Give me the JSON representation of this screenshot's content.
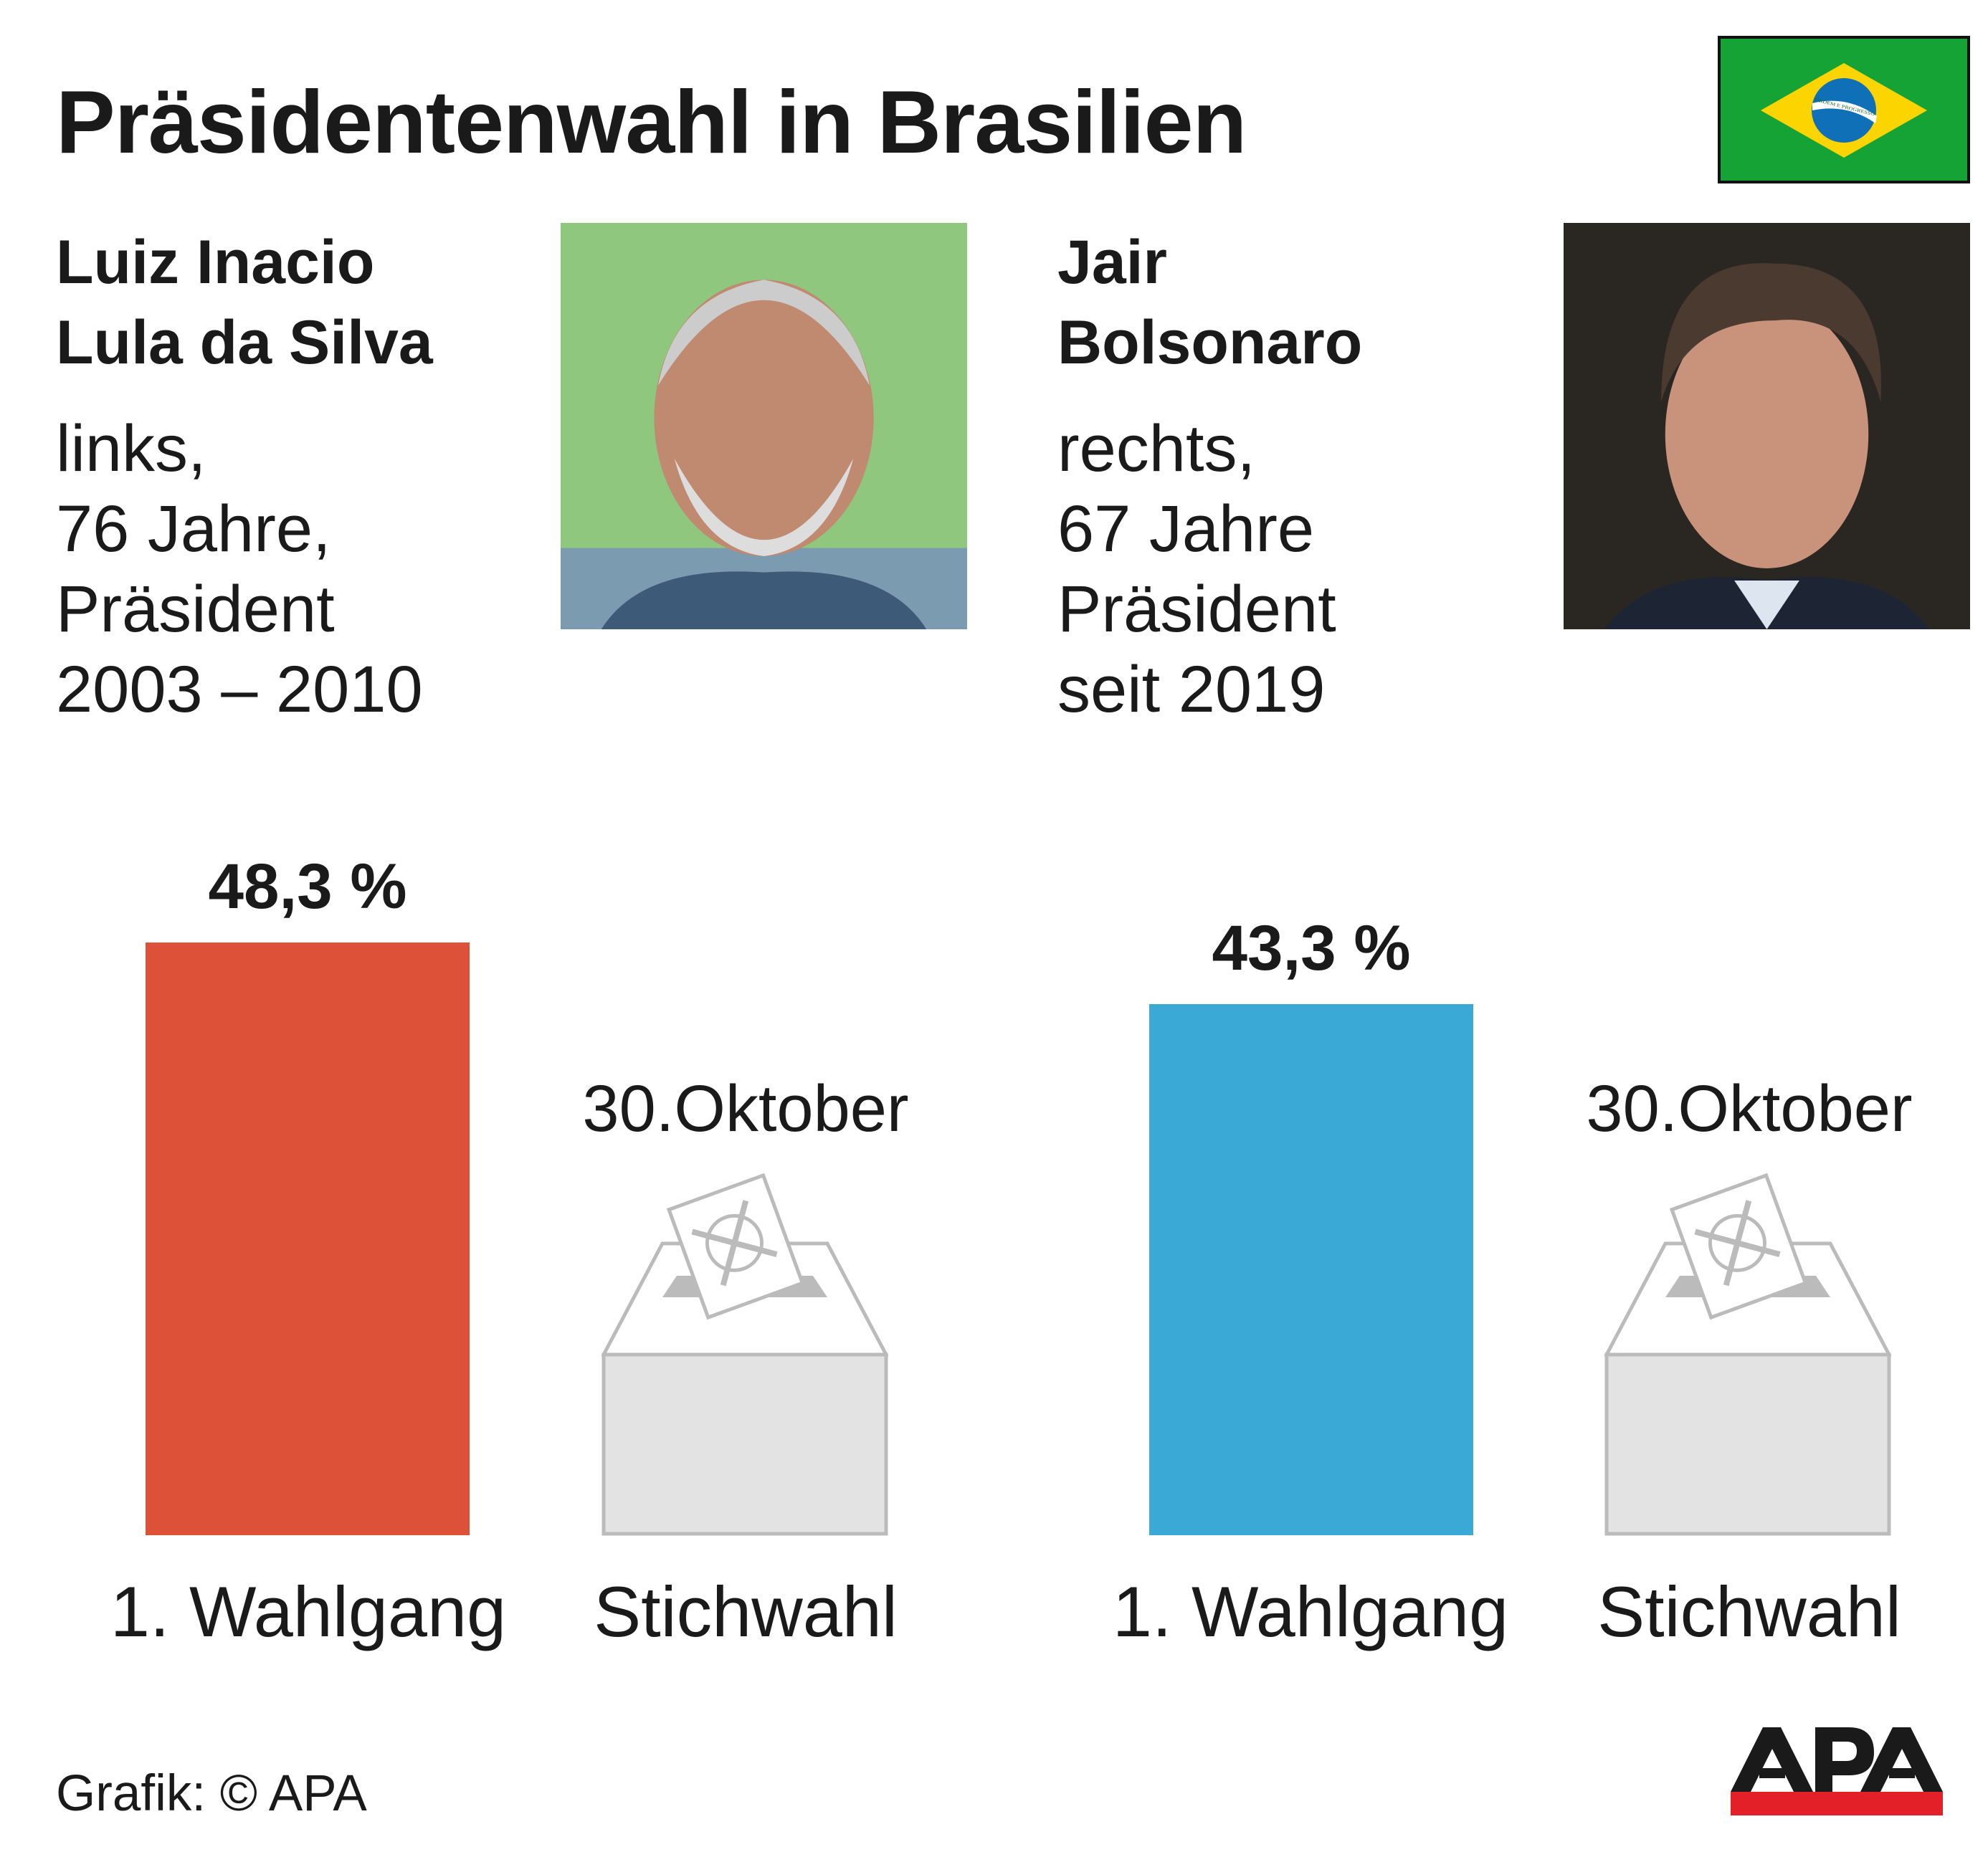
{
  "title": "Präsidentenwahl in Brasilien",
  "flag": {
    "icon": "brazil-flag-icon",
    "motto": "ORDEM E PROGRESSO",
    "colors": {
      "green": "#16a335",
      "yellow": "#fcd500",
      "blue": "#0f70b7"
    }
  },
  "candidates": [
    {
      "name_lines": [
        "Luiz Inacio",
        "Lula da Silva"
      ],
      "info_lines": [
        "links,",
        "76 Jahre,",
        "Präsident",
        "2003 – 2010"
      ],
      "photo": "portrait-photo"
    },
    {
      "name_lines": [
        "Jair",
        "Bolsonaro"
      ],
      "info_lines": [
        "rechts,",
        "67 Jahre",
        "Präsident",
        "seit 2019"
      ],
      "photo": "portrait-photo"
    }
  ],
  "chart_data": {
    "type": "bar",
    "categories": [
      "1. Wahlgang",
      "Stichwahl"
    ],
    "unit": "%",
    "series": [
      {
        "candidate": "Lula",
        "values": [
          48.3,
          null
        ],
        "labels": [
          "48,3 %",
          ""
        ],
        "color": "#dc5138"
      },
      {
        "candidate": "Bolsonaro",
        "values": [
          43.3,
          null
        ],
        "labels": [
          "43,3 %",
          ""
        ],
        "color": "#3ba9d6"
      }
    ],
    "pending_label": "30.Oktober",
    "pending_icon": "ballot-box-icon",
    "grid": false
  },
  "footer": {
    "credit": "Grafik: © APA",
    "logo_text": "APA",
    "logo_colors": {
      "text": "#1a1a1a",
      "bar": "#e32028"
    }
  }
}
